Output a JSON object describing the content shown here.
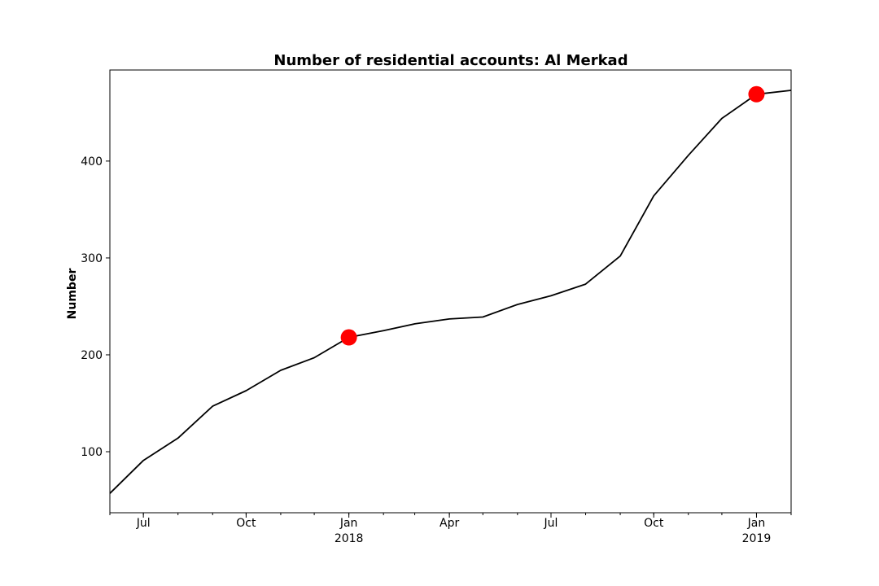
{
  "chart_data": {
    "type": "line",
    "title": "Number of residential accounts: Al Merkad",
    "xlabel": "",
    "ylabel": "Number",
    "x": [
      "2017-06-01",
      "2017-07-01",
      "2017-08-01",
      "2017-09-01",
      "2017-10-01",
      "2017-11-01",
      "2017-12-01",
      "2018-01-01",
      "2018-02-01",
      "2018-03-01",
      "2018-04-01",
      "2018-05-01",
      "2018-06-01",
      "2018-07-01",
      "2018-08-01",
      "2018-09-01",
      "2018-10-01",
      "2018-11-01",
      "2018-12-01",
      "2019-01-01",
      "2019-02-01"
    ],
    "series": [
      {
        "values": [
          57,
          91,
          114,
          147,
          163,
          184,
          197,
          218,
          225,
          232,
          237,
          239,
          252,
          261,
          273,
          302,
          364,
          406,
          444,
          469,
          473
        ],
        "color": "#000000"
      }
    ],
    "highlights": [
      {
        "x": "2018-01-01",
        "y": 218,
        "color": "#ff0000"
      },
      {
        "x": "2019-01-01",
        "y": 469,
        "color": "#ff0000"
      }
    ],
    "xlim": [
      "2017-06-01",
      "2019-02-01"
    ],
    "ylim": [
      37,
      494
    ],
    "yticks": [
      100,
      200,
      300,
      400
    ],
    "xticks": [
      {
        "date": "2017-07-01",
        "label": "Jul",
        "sub": ""
      },
      {
        "date": "2017-10-01",
        "label": "Oct",
        "sub": ""
      },
      {
        "date": "2018-01-01",
        "label": "Jan",
        "sub": "2018"
      },
      {
        "date": "2018-04-01",
        "label": "Apr",
        "sub": ""
      },
      {
        "date": "2018-07-01",
        "label": "Jul",
        "sub": ""
      },
      {
        "date": "2018-10-01",
        "label": "Oct",
        "sub": ""
      },
      {
        "date": "2019-01-01",
        "label": "Jan",
        "sub": "2019"
      }
    ],
    "grid": false,
    "legend": "none"
  }
}
